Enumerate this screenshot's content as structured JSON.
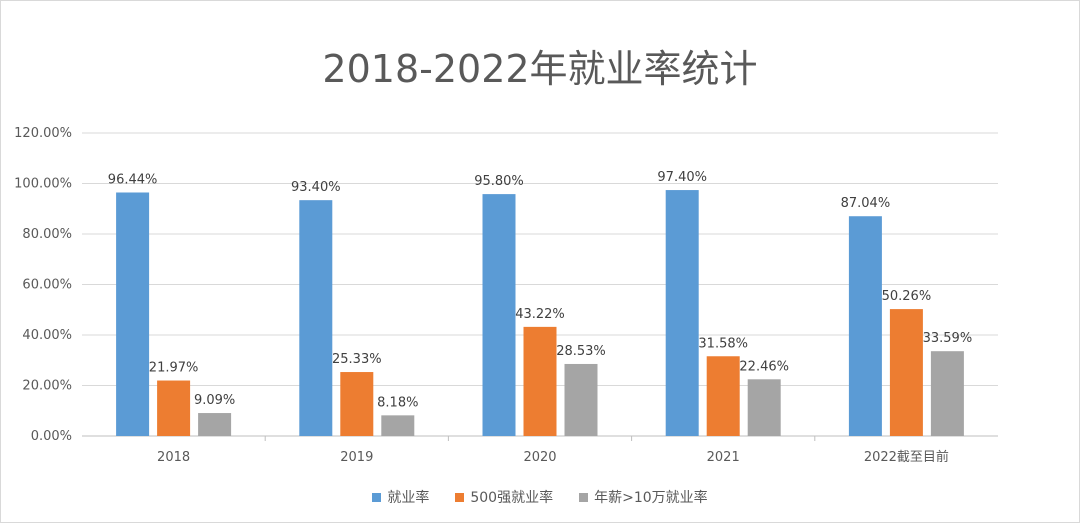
{
  "chart_data": {
    "type": "bar",
    "title": "2018-2022年就业率统计",
    "categories": [
      "2018",
      "2019",
      "2020",
      "2021",
      "2022截至目前"
    ],
    "series": [
      {
        "name": "就业率",
        "color": "#5b9bd5",
        "values": [
          96.44,
          93.4,
          95.8,
          97.4,
          87.04
        ],
        "labels": [
          "96.44%",
          "93.40%",
          "95.80%",
          "97.40%",
          "87.04%"
        ]
      },
      {
        "name": "500强就业率",
        "color": "#ed7d31",
        "values": [
          21.97,
          25.33,
          43.22,
          31.58,
          50.26
        ],
        "labels": [
          "21.97%",
          "25.33%",
          "43.22%",
          "31.58%",
          "50.26%"
        ]
      },
      {
        "name": "年薪>10万就业率",
        "color": "#a5a5a5",
        "values": [
          9.09,
          8.18,
          28.53,
          22.46,
          33.59
        ],
        "labels": [
          "9.09%",
          "8.18%",
          "28.53%",
          "22.46%",
          "33.59%"
        ]
      }
    ],
    "ylim": [
      0,
      120
    ],
    "yticks": [
      0,
      20,
      40,
      60,
      80,
      100,
      120
    ],
    "ytick_labels": [
      "0.00%",
      "20.00%",
      "40.00%",
      "60.00%",
      "80.00%",
      "100.00%",
      "120.00%"
    ],
    "xlabel": "",
    "ylabel": "",
    "grid": true,
    "legend_position": "bottom"
  }
}
